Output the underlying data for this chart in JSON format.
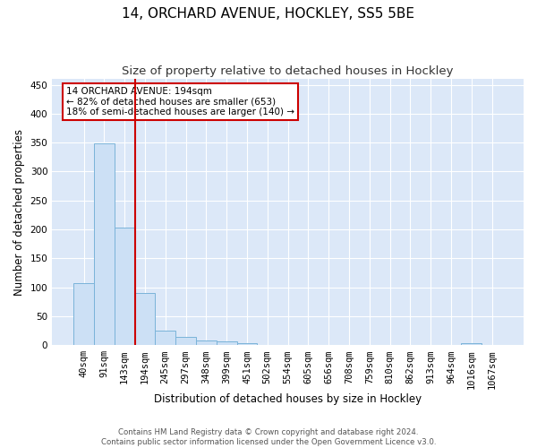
{
  "title": "14, ORCHARD AVENUE, HOCKLEY, SS5 5BE",
  "subtitle": "Size of property relative to detached houses in Hockley",
  "xlabel": "Distribution of detached houses by size in Hockley",
  "ylabel": "Number of detached properties",
  "bins": [
    "40sqm",
    "91sqm",
    "143sqm",
    "194sqm",
    "245sqm",
    "297sqm",
    "348sqm",
    "399sqm",
    "451sqm",
    "502sqm",
    "554sqm",
    "605sqm",
    "656sqm",
    "708sqm",
    "759sqm",
    "810sqm",
    "862sqm",
    "913sqm",
    "964sqm",
    "1016sqm",
    "1067sqm"
  ],
  "counts": [
    108,
    348,
    203,
    90,
    25,
    15,
    8,
    7,
    4,
    0,
    0,
    0,
    0,
    0,
    0,
    0,
    0,
    0,
    0,
    4,
    0
  ],
  "bar_color": "#cce0f5",
  "bar_edge_color": "#7ab3d9",
  "vline_x": 3.0,
  "vline_color": "#cc0000",
  "annotation_line1": "14 ORCHARD AVENUE: 194sqm",
  "annotation_line2": "← 82% of detached houses are smaller (653)",
  "annotation_line3": "18% of semi-detached houses are larger (140) →",
  "annotation_box_color": "white",
  "annotation_box_edge": "#cc0000",
  "ylim": [
    0,
    460
  ],
  "yticks": [
    0,
    50,
    100,
    150,
    200,
    250,
    300,
    350,
    400,
    450
  ],
  "background_color": "#dce8f8",
  "footer_text": "Contains HM Land Registry data © Crown copyright and database right 2024.\nContains public sector information licensed under the Open Government Licence v3.0.",
  "title_fontsize": 11,
  "subtitle_fontsize": 9.5,
  "ylabel_fontsize": 8.5,
  "xlabel_fontsize": 8.5,
  "tick_fontsize": 7.5,
  "annotation_fontsize": 7.5
}
